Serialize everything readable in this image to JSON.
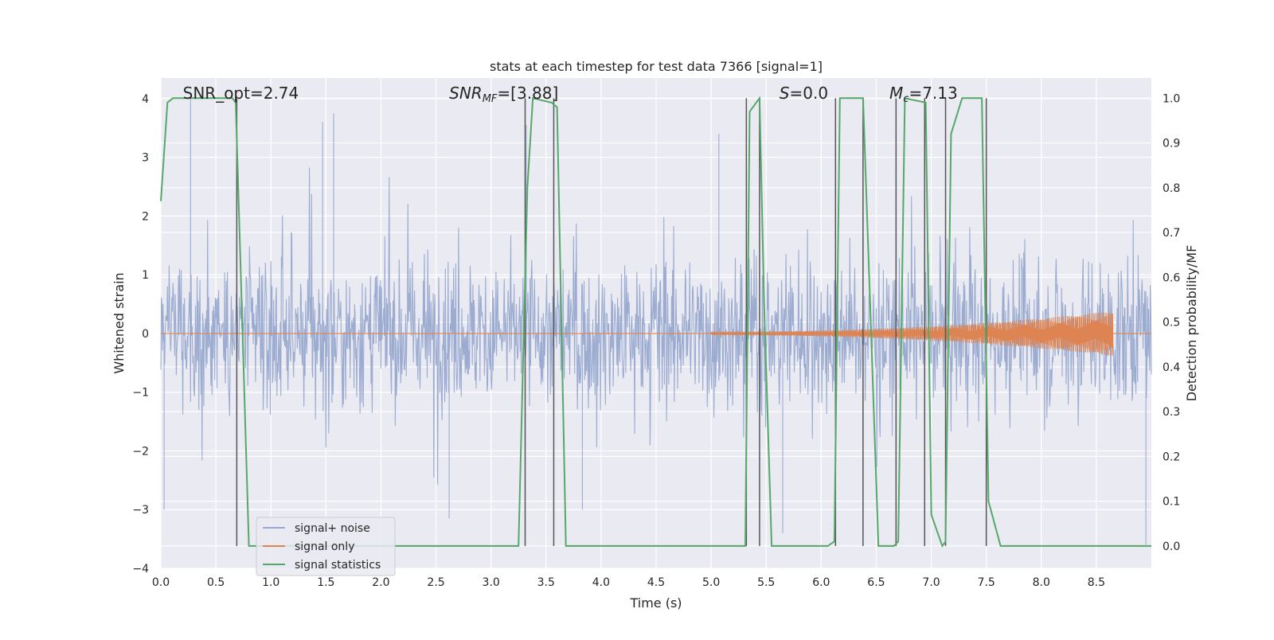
{
  "chart_data": {
    "type": "line",
    "title": "stats at each timestep for test data 7366 [signal=1]",
    "xlabel": "Time (s)",
    "ylabel": "Whitened strain",
    "y2label": "Detection probability/MF",
    "xlim": [
      0.0,
      9.0
    ],
    "ylim": [
      -4.0,
      4.35
    ],
    "y2lim": [
      -0.05,
      1.045
    ],
    "xticks": [
      "0.0",
      "0.5",
      "1.0",
      "1.5",
      "2.0",
      "2.5",
      "3.0",
      "3.5",
      "4.0",
      "4.5",
      "5.0",
      "5.5",
      "6.0",
      "6.5",
      "7.0",
      "7.5",
      "8.0",
      "8.5"
    ],
    "xtick_values": [
      0.0,
      0.5,
      1.0,
      1.5,
      2.0,
      2.5,
      3.0,
      3.5,
      4.0,
      4.5,
      5.0,
      5.5,
      6.0,
      6.5,
      7.0,
      7.5,
      8.0,
      8.5
    ],
    "yticks": [
      "−4",
      "−3",
      "−2",
      "−1",
      "0",
      "1",
      "2",
      "3",
      "4"
    ],
    "ytick_values": [
      -4,
      -3,
      -2,
      -1,
      0,
      1,
      2,
      3,
      4
    ],
    "y2ticks": [
      "0.0",
      "0.1",
      "0.2",
      "0.3",
      "0.4",
      "0.5",
      "0.6",
      "0.7",
      "0.8",
      "0.9",
      "1.0"
    ],
    "y2tick_values": [
      0.0,
      0.1,
      0.2,
      0.3,
      0.4,
      0.5,
      0.6,
      0.7,
      0.8,
      0.9,
      1.0
    ],
    "grid": true,
    "legend_position": "bottom-left",
    "annotations": [
      {
        "text": "SNR_opt=2.74",
        "x": 0.2
      },
      {
        "text": "SNR",
        "sub": "MF",
        "rest": "=[3.88]",
        "x": 2.62,
        "italic": true
      },
      {
        "text": "S",
        "rest": "=0.0",
        "x": 5.62,
        "italic": true
      },
      {
        "text": "M",
        "sub": "c",
        "rest": "=7.13",
        "x": 6.62,
        "italic": true
      }
    ],
    "series": [
      {
        "name": "signal+ noise",
        "color": "#98a9cf",
        "description_values": {
          "typical_band": [
            -1.3,
            1.3
          ],
          "peak_max": 4.0,
          "peak_min": -3.2
        },
        "notable_spikes": [
          {
            "x": 0.27,
            "y": 4.0
          },
          {
            "x": 1.47,
            "y": 3.6
          },
          {
            "x": 1.57,
            "y": 3.75
          },
          {
            "x": 3.32,
            "y": 3.55
          },
          {
            "x": 5.07,
            "y": 3.4
          },
          {
            "x": 0.03,
            "y": -3.0
          },
          {
            "x": 2.62,
            "y": -3.15
          },
          {
            "x": 3.83,
            "y": -3.0
          },
          {
            "x": 5.65,
            "y": -3.4
          },
          {
            "x": 8.95,
            "y": -3.6
          }
        ]
      },
      {
        "name": "signal only",
        "color": "#dd8452",
        "chirp": {
          "start": 5.0,
          "end": 8.65,
          "amp_start": 0.03,
          "amp_end": 0.38,
          "peak_x": 8.65
        }
      },
      {
        "name": "signal statistics",
        "color": "#55a868",
        "x": [
          0.0,
          0.06,
          0.11,
          0.65,
          0.68,
          0.8,
          3.25,
          3.33,
          3.38,
          3.55,
          3.6,
          3.68,
          5.31,
          5.35,
          5.44,
          5.48,
          5.55,
          6.06,
          6.12,
          6.17,
          6.22,
          6.38,
          6.52,
          6.66,
          6.7,
          6.76,
          6.95,
          7.0,
          7.1,
          7.13,
          7.18,
          7.28,
          7.46,
          7.52,
          7.63,
          9.0
        ],
        "y": [
          0.77,
          0.99,
          1.0,
          1.0,
          0.99,
          0.0,
          0.0,
          0.8,
          1.0,
          0.99,
          0.98,
          0.0,
          0.0,
          0.97,
          1.0,
          0.55,
          0.0,
          0.0,
          0.01,
          1.0,
          1.0,
          1.0,
          0.0,
          0.0,
          0.01,
          1.0,
          0.99,
          0.07,
          0.0,
          0.01,
          0.92,
          1.0,
          1.0,
          0.1,
          0.0,
          0.0
        ]
      }
    ],
    "vertical_markers": {
      "color": "#555555",
      "x": [
        0.69,
        3.31,
        3.57,
        5.32,
        5.44,
        6.13,
        6.38,
        6.68,
        6.94,
        7.13,
        7.5
      ],
      "y2_top": 1.0
    }
  }
}
